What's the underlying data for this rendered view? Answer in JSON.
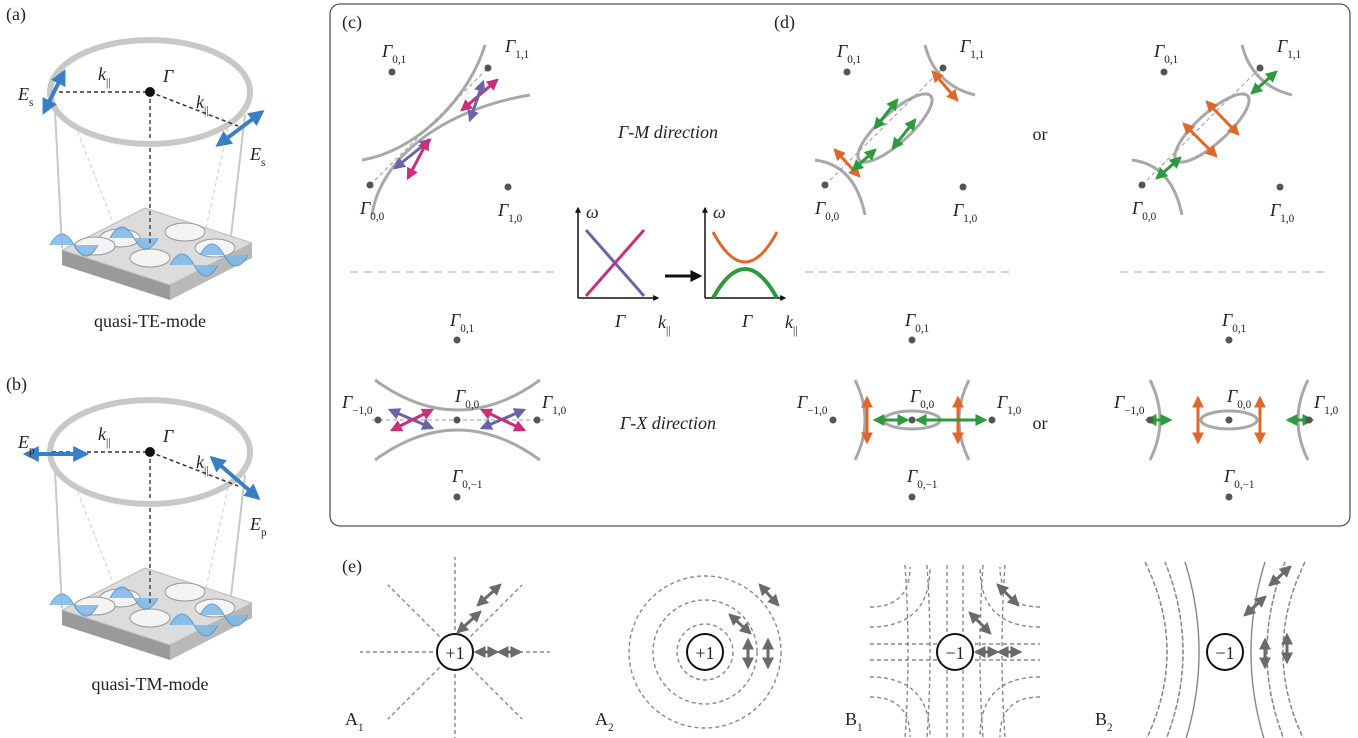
{
  "panel_a": {
    "label": "(a)",
    "caption": "quasi-TE-mode",
    "field": {
      "symbol": "E",
      "sub": "s"
    },
    "wavevector": {
      "symbol": "k",
      "sub": "||"
    },
    "center": "Γ"
  },
  "panel_b": {
    "label": "(b)",
    "caption": "quasi-TM-mode",
    "field": {
      "symbol": "E",
      "sub": "p"
    },
    "wavevector": {
      "symbol": "k",
      "sub": "||"
    },
    "center": "Γ"
  },
  "panel_c": {
    "label": "(c)",
    "gm_direction": "Γ-M direction",
    "gx_direction": "Γ-X direction"
  },
  "panel_d": {
    "label": "(d)",
    "or": "or"
  },
  "lattice": {
    "symbol": "Γ",
    "gm": [
      "0,1",
      "1,1",
      "0,0",
      "1,0"
    ],
    "gx": [
      "0,1",
      "−1,0",
      "0,0",
      "1,0",
      "0,−1"
    ]
  },
  "dispersion": {
    "y_axis": "ω",
    "origin": "Γ",
    "x_axis": {
      "symbol": "k",
      "sub": "||"
    }
  },
  "panel_e": {
    "label": "(e)",
    "items": [
      {
        "charge": "+1",
        "name": {
          "symbol": "A",
          "sub": "1"
        }
      },
      {
        "charge": "+1",
        "name": {
          "symbol": "A",
          "sub": "2"
        }
      },
      {
        "charge": "−1",
        "name": {
          "symbol": "B",
          "sub": "1"
        }
      },
      {
        "charge": "−1",
        "name": {
          "symbol": "B",
          "sub": "2"
        }
      }
    ]
  }
}
